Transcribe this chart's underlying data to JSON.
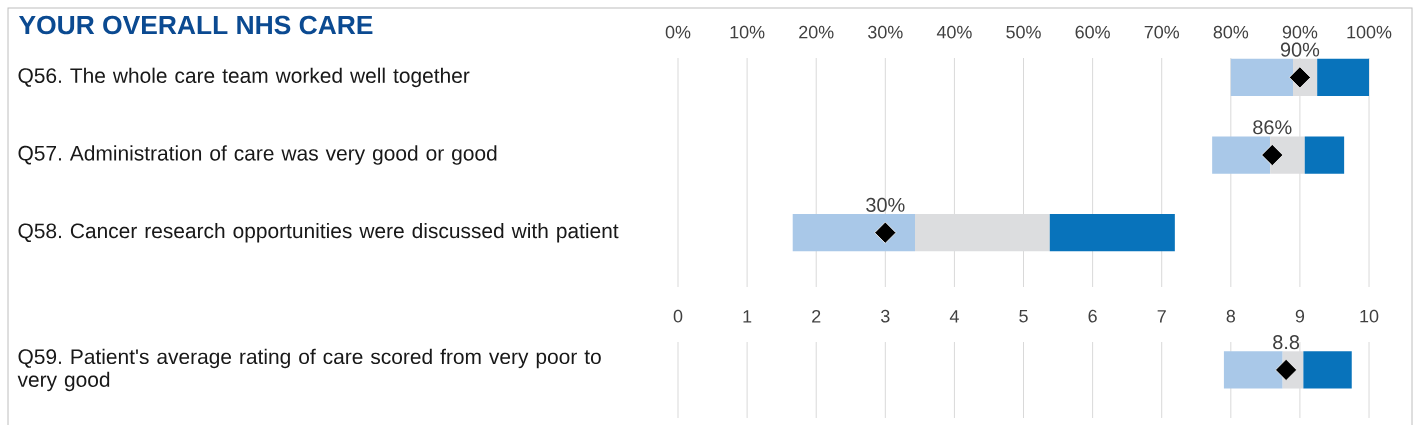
{
  "chart_data": [
    {
      "type": "bar",
      "orientation": "horizontal",
      "title": "YOUR OVERALL NHS CARE",
      "categories": [
        "Q56. The whole care team worked well together",
        "Q57. Administration of care was very good or good",
        "Q58. Cancer research opportunities were discussed with patient"
      ],
      "series": [
        {
          "color": "#a9c8e8",
          "base": [
            80,
            77.3,
            16.6
          ],
          "values": [
            9,
            8.4,
            17.7
          ]
        },
        {
          "color": "#dcdddf",
          "base": [
            89,
            85.7,
            34.3
          ],
          "values": [
            3.5,
            5,
            19.5
          ]
        },
        {
          "color": "#0873bb",
          "base": [
            92.5,
            90.7,
            53.8
          ],
          "values": [
            7.5,
            5.7,
            18.1
          ]
        },
        {
          "type": "scatter",
          "marker": "diamond",
          "color": "#000000",
          "values": [
            90,
            86,
            30
          ],
          "value_labels": [
            "90%",
            "86%",
            "30%"
          ]
        }
      ],
      "xlim": [
        0,
        100
      ],
      "xticks": [
        {
          "value": 0,
          "label": "0%"
        },
        {
          "value": 10,
          "label": "10%"
        },
        {
          "value": 20,
          "label": "20%"
        },
        {
          "value": 30,
          "label": "30%"
        },
        {
          "value": 40,
          "label": "40%"
        },
        {
          "value": 50,
          "label": "50%"
        },
        {
          "value": 60,
          "label": "60%"
        },
        {
          "value": 70,
          "label": "70%"
        },
        {
          "value": 80,
          "label": "80%"
        },
        {
          "value": 90,
          "label": "90%"
        },
        {
          "value": 100,
          "label": "100%"
        }
      ],
      "grid": "x"
    },
    {
      "type": "bar",
      "orientation": "horizontal",
      "categories": [
        "Q59. Patient's average rating of care scored from very poor to very good"
      ],
      "series": [
        {
          "color": "#a9c8e8",
          "base": [
            7.9
          ],
          "values": [
            0.85
          ]
        },
        {
          "color": "#dcdddf",
          "base": [
            8.75
          ],
          "values": [
            0.3
          ]
        },
        {
          "color": "#0873bb",
          "base": [
            9.05
          ],
          "values": [
            0.7
          ]
        },
        {
          "type": "scatter",
          "marker": "diamond",
          "color": "#000000",
          "values": [
            8.8
          ],
          "value_labels": [
            "8.8"
          ]
        }
      ],
      "xlim": [
        0,
        10
      ],
      "xticks": [
        0,
        1,
        2,
        3,
        4,
        5,
        6,
        7,
        8,
        9,
        10
      ],
      "grid": "x"
    }
  ]
}
